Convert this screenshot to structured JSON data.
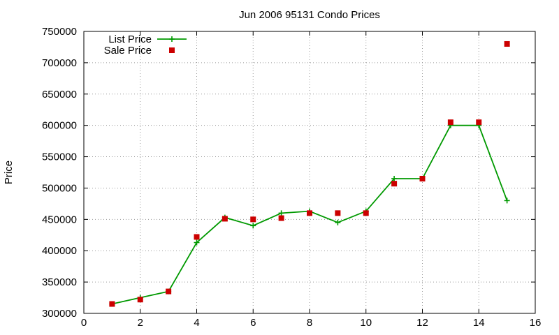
{
  "chart_data": {
    "type": "line",
    "title": "Jun 2006 95131 Condo Prices",
    "xlabel": "",
    "ylabel": "Price",
    "xlim": [
      0,
      16
    ],
    "ylim": [
      300000,
      750000
    ],
    "x_ticks": [
      0,
      2,
      4,
      6,
      8,
      10,
      12,
      14,
      16
    ],
    "y_ticks": [
      300000,
      350000,
      400000,
      450000,
      500000,
      550000,
      600000,
      650000,
      700000,
      750000
    ],
    "grid": true,
    "legend_position": "top-left",
    "series": [
      {
        "name": "List Price",
        "style": "line-with-plus-markers",
        "color": "#009900",
        "x": [
          1,
          2,
          3,
          4,
          5,
          6,
          7,
          8,
          9,
          10,
          11,
          12,
          13,
          14,
          15
        ],
        "y": [
          315000,
          325000,
          335000,
          413000,
          453000,
          440000,
          460000,
          463000,
          445000,
          463000,
          515000,
          515000,
          600000,
          600000,
          480000
        ]
      },
      {
        "name": "Sale Price",
        "style": "square-points",
        "color": "#cc0000",
        "x": [
          1,
          2,
          3,
          4,
          5,
          6,
          7,
          8,
          9,
          10,
          11,
          12,
          13,
          14,
          15
        ],
        "y": [
          315000,
          322000,
          335000,
          422000,
          451000,
          450000,
          452000,
          460000,
          460000,
          460000,
          507000,
          515000,
          605000,
          605000,
          730000
        ]
      }
    ]
  }
}
